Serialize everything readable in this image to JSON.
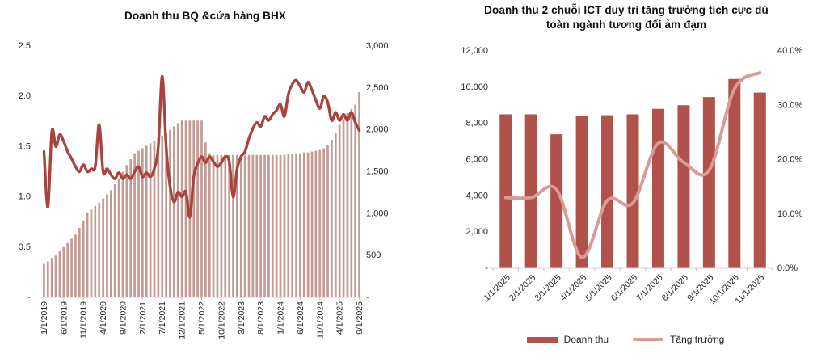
{
  "chart_data": [
    {
      "type": "combo-bar-line",
      "title": "Doanh thu BQ &cửa hàng BHX",
      "x_frequency": "monthly",
      "n_points": 81,
      "x_range": [
        "1/1/2019",
        "9/1/2025"
      ],
      "x_tick_labels": [
        "1/1/2019",
        "6/1/2019",
        "11/1/2019",
        "4/1/2020",
        "9/1/2020",
        "2/1/2021",
        "7/1/2021",
        "12/1/2021",
        "5/1/2022",
        "10/1/2022",
        "3/1/2023",
        "8/1/2023",
        "1/1/2024",
        "6/1/2024",
        "11/1/2024",
        "4/1/2025",
        "9/1/2025"
      ],
      "left_axis": {
        "min": 0,
        "max": 2.5,
        "tick_values": [
          2.5,
          2.0,
          1.5,
          1.0,
          0.5,
          0
        ],
        "tick_labels": [
          "2.5",
          "2.0",
          "1.5",
          "1.0",
          "0.5",
          "-"
        ]
      },
      "right_axis": {
        "min": 0,
        "max": 3000,
        "tick_values": [
          3000,
          2500,
          2000,
          1500,
          1000,
          500,
          0
        ],
        "tick_labels": [
          "3,000",
          "2,500",
          "2,000",
          "1,500",
          "1,000",
          "500",
          "-"
        ]
      },
      "series": [
        {
          "name": "Cửa hàng BHX",
          "type": "bar",
          "axis": "right",
          "color": "#C49A94",
          "values": [
            400,
            430,
            470,
            500,
            550,
            600,
            650,
            700,
            750,
            830,
            920,
            1010,
            1050,
            1090,
            1130,
            1180,
            1230,
            1280,
            1350,
            1420,
            1500,
            1580,
            1650,
            1720,
            1750,
            1780,
            1810,
            1840,
            1870,
            1900,
            1930,
            1960,
            2000,
            2040,
            2080,
            2110,
            2110,
            2110,
            2110,
            2110,
            2110,
            1850,
            1720,
            1700,
            1700,
            1700,
            1700,
            1700,
            1700,
            1700,
            1700,
            1700,
            1700,
            1700,
            1700,
            1700,
            1700,
            1700,
            1700,
            1700,
            1700,
            1700,
            1710,
            1710,
            1720,
            1720,
            1730,
            1730,
            1740,
            1750,
            1760,
            1780,
            1820,
            1880,
            1960,
            2060,
            2120,
            2200,
            2250,
            2300,
            2450
          ]
        },
        {
          "name": "Doanh thu BQ",
          "type": "line",
          "axis": "left",
          "color": "#A8433E",
          "values": [
            1.45,
            0.9,
            1.65,
            1.5,
            1.62,
            1.55,
            1.45,
            1.38,
            1.3,
            1.25,
            1.32,
            1.25,
            1.28,
            1.3,
            1.72,
            1.25,
            1.28,
            1.22,
            1.18,
            1.24,
            1.18,
            1.22,
            1.18,
            1.25,
            1.3,
            1.2,
            1.24,
            1.2,
            1.28,
            1.5,
            2.2,
            1.5,
            1.1,
            0.95,
            1.05,
            1.0,
            1.05,
            0.8,
            1.2,
            1.33,
            1.4,
            1.34,
            1.4,
            1.35,
            1.3,
            1.34,
            1.4,
            1.35,
            1.0,
            1.28,
            1.4,
            1.45,
            1.58,
            1.68,
            1.74,
            1.7,
            1.8,
            1.76,
            1.82,
            1.86,
            1.92,
            1.8,
            2.02,
            2.12,
            2.16,
            2.1,
            2.04,
            2.14,
            2.06,
            1.96,
            1.88,
            2.0,
            1.94,
            1.76,
            1.84,
            1.76,
            1.82,
            1.76,
            1.84,
            1.74,
            1.66
          ]
        }
      ]
    },
    {
      "type": "combo-bar-line",
      "title": "Doanh thu 2 chuỗi ICT duy trì tăng trưởng tích cực dù toàn ngành tương đối ảm đạm",
      "categories": [
        "1/1/2025",
        "2/1/2025",
        "3/1/2025",
        "4/1/2025",
        "5/1/2025",
        "6/1/2025",
        "7/1/2025",
        "8/1/2025",
        "9/1/2025",
        "10/1/2025",
        "11/1/2025"
      ],
      "left_axis": {
        "min": 0,
        "max": 12000,
        "tick_values": [
          12000,
          10000,
          8000,
          6000,
          4000,
          2000,
          0
        ],
        "tick_labels": [
          "12,000",
          "10,000",
          "8,000",
          "6,000",
          "4,000",
          "2,000",
          "-"
        ]
      },
      "right_axis": {
        "min": 0,
        "max": 40,
        "tick_values": [
          40,
          30,
          20,
          10,
          0
        ],
        "tick_labels": [
          "40.0%",
          "30.0%",
          "20.0%",
          "10.0%",
          "0.0%"
        ]
      },
      "series": [
        {
          "name": "Doanh thu",
          "type": "bar",
          "axis": "left",
          "color": "#B1514B",
          "values": [
            8500,
            8500,
            7400,
            8400,
            8450,
            8500,
            8800,
            9000,
            9450,
            10450,
            9700
          ]
        },
        {
          "name": "Tăng trưởng",
          "type": "line",
          "axis": "right",
          "color": "#D89B95",
          "values": [
            13.0,
            13.0,
            14.5,
            2.0,
            12.5,
            12.0,
            23.0,
            19.5,
            18.0,
            33.0,
            36.0
          ]
        }
      ],
      "legend": [
        {
          "label": "Doanh thu",
          "color": "#B1514B",
          "shape": "rect"
        },
        {
          "label": "Tăng trưởng",
          "color": "#D89B95",
          "shape": "line"
        }
      ]
    }
  ],
  "style": {
    "axis_line_color": "#D9D9D9",
    "tick_color": "#BFBFBF",
    "text_color": "#262626"
  }
}
